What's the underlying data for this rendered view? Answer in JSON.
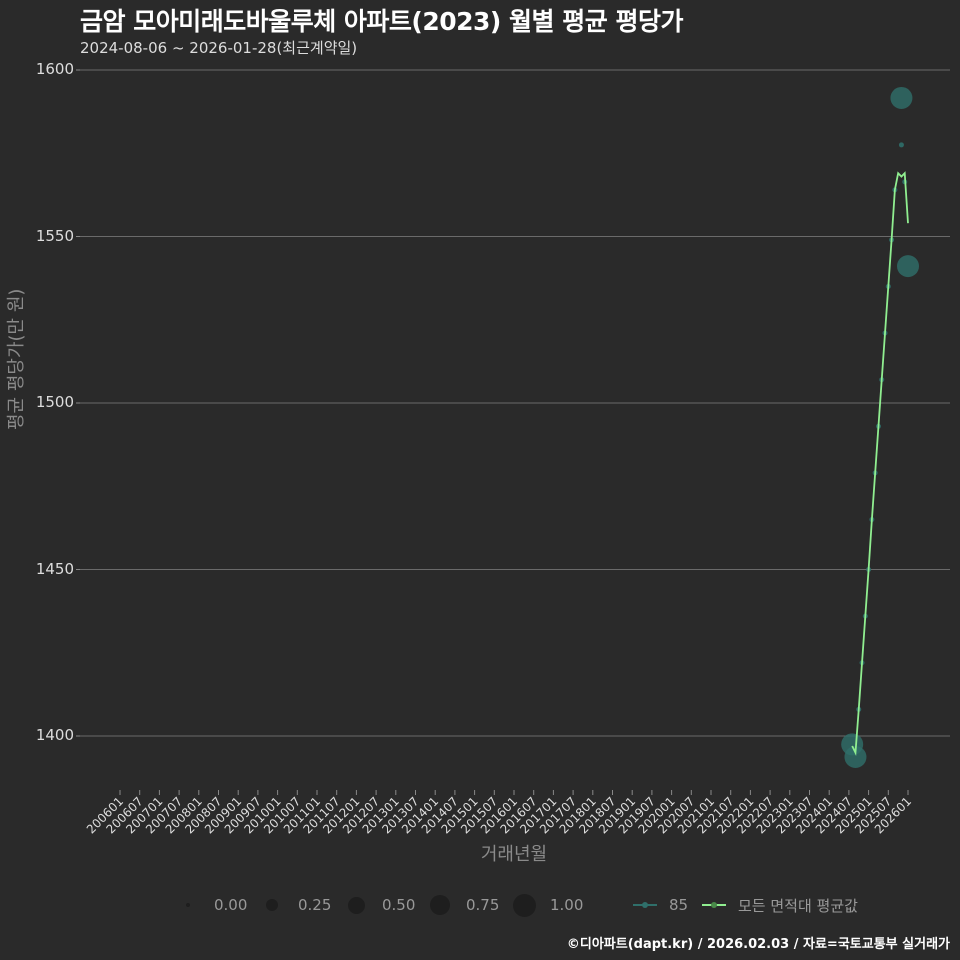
{
  "header": {
    "title": "금암 모아미래도바울루체 아파트(2023) 월별 평균 평당가",
    "subtitle": "2024-08-06 ~ 2026-01-28(최근계약일)"
  },
  "axes": {
    "ylabel": "평균 평당가(만 원)",
    "xlabel": "거래년월",
    "yticks": [
      "1600",
      "1550",
      "1500",
      "1450",
      "1400"
    ],
    "xticks": [
      "200601",
      "200607",
      "200701",
      "200707",
      "200801",
      "200807",
      "200901",
      "200907",
      "201001",
      "201007",
      "201101",
      "201107",
      "201201",
      "201207",
      "201301",
      "201307",
      "201401",
      "201407",
      "201501",
      "201507",
      "201601",
      "201607",
      "201701",
      "201707",
      "201801",
      "201807",
      "201901",
      "201907",
      "202001",
      "202007",
      "202101",
      "202107",
      "202201",
      "202207",
      "202301",
      "202307",
      "202401",
      "202407",
      "202501",
      "202507",
      "202601"
    ]
  },
  "legend": {
    "size_items": [
      {
        "label": "0.00",
        "r": 2
      },
      {
        "label": "0.25",
        "r": 6
      },
      {
        "label": "0.50",
        "r": 8.5
      },
      {
        "label": "0.75",
        "r": 10
      },
      {
        "label": "1.00",
        "r": 11.5
      }
    ],
    "series_items": [
      {
        "label": "85",
        "color": "#2f6f6a"
      },
      {
        "label": "모든 면적대 평균값",
        "color": "#90ee90"
      }
    ]
  },
  "footer": {
    "credit": "©디아파트(dapt.kr) / 2026.02.03 / 자료=국토교통부 실거래가"
  },
  "colors": {
    "background": "#2a2a2a",
    "grid": "#6a6a6a",
    "avg_line": "#90ee90",
    "series_85": "#2f6f6a"
  },
  "chart_data": {
    "type": "line",
    "title": "금암 모아미래도바울루체 아파트(2023) 월별 평균 평당가",
    "subtitle": "2024-08-06 ~ 2026-01-28(최근계약일)",
    "xlabel": "거래년월",
    "ylabel": "평균 평당가(만 원)",
    "ylim": [
      1385,
      1605
    ],
    "xrange": [
      "200601",
      "202602"
    ],
    "grid": true,
    "legend_position": "bottom",
    "series": [
      {
        "name": "모든 면적대 평균값",
        "type": "line",
        "color": "#90ee90",
        "points": [
          {
            "x": "202408",
            "y": 1397
          },
          {
            "x": "202409",
            "y": 1395
          },
          {
            "x": "202410",
            "y": 1408
          },
          {
            "x": "202411",
            "y": 1422
          },
          {
            "x": "202412",
            "y": 1436
          },
          {
            "x": "202501",
            "y": 1450
          },
          {
            "x": "202502",
            "y": 1465
          },
          {
            "x": "202503",
            "y": 1479
          },
          {
            "x": "202504",
            "y": 1493
          },
          {
            "x": "202505",
            "y": 1507
          },
          {
            "x": "202506",
            "y": 1521
          },
          {
            "x": "202507",
            "y": 1535
          },
          {
            "x": "202508",
            "y": 1549
          },
          {
            "x": "202509",
            "y": 1564
          },
          {
            "x": "202510",
            "y": 1569
          },
          {
            "x": "202511",
            "y": 1568
          },
          {
            "x": "202512",
            "y": 1569
          },
          {
            "x": "202601",
            "y": 1554
          }
        ]
      },
      {
        "name": "85",
        "type": "scatter",
        "color": "#2f6f6a",
        "points": [
          {
            "x": "202408",
            "y": 1397.5,
            "size": 0.75
          },
          {
            "x": "202409",
            "y": 1393.7,
            "size": 0.75
          },
          {
            "x": "202410",
            "y": 1408,
            "size": 0.05
          },
          {
            "x": "202411",
            "y": 1422,
            "size": 0.05
          },
          {
            "x": "202412",
            "y": 1436,
            "size": 0.05
          },
          {
            "x": "202501",
            "y": 1450,
            "size": 0.05
          },
          {
            "x": "202502",
            "y": 1465,
            "size": 0.05
          },
          {
            "x": "202503",
            "y": 1479,
            "size": 0.05
          },
          {
            "x": "202504",
            "y": 1493,
            "size": 0.05
          },
          {
            "x": "202505",
            "y": 1507,
            "size": 0.05
          },
          {
            "x": "202506",
            "y": 1521,
            "size": 0.05
          },
          {
            "x": "202507",
            "y": 1535,
            "size": 0.05
          },
          {
            "x": "202508",
            "y": 1549,
            "size": 0.05
          },
          {
            "x": "202509",
            "y": 1564,
            "size": 0.05
          },
          {
            "x": "202511",
            "y": 1577.5,
            "size": 0.05
          },
          {
            "x": "202511",
            "y": 1591.6,
            "size": 0.8
          },
          {
            "x": "202512",
            "y": 1566.4,
            "size": 0.05
          },
          {
            "x": "202601",
            "y": 1541.1,
            "size": 0.75
          }
        ]
      }
    ]
  }
}
